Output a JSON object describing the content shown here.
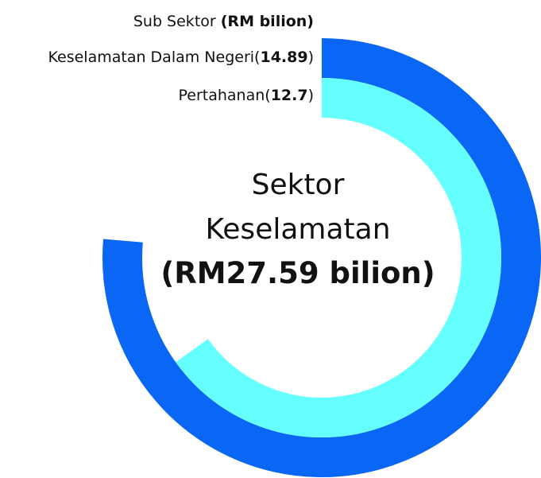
{
  "chart_data": {
    "type": "radial_bar",
    "legend_title": "Sub Sektor",
    "legend_unit": "(RM bilion)",
    "center_text": [
      "Sektor",
      "Keselamatan"
    ],
    "total_label": "(RM27.59 bilion)",
    "ylim": [
      0,
      19.5
    ],
    "series": [
      {
        "name": "Keselamatan Dalam Negeri",
        "color": "#0a66f5",
        "values": [
          14.89
        ]
      },
      {
        "name": "Pertahanan",
        "color": "#66ffff",
        "values": [
          12.7
        ]
      }
    ]
  }
}
